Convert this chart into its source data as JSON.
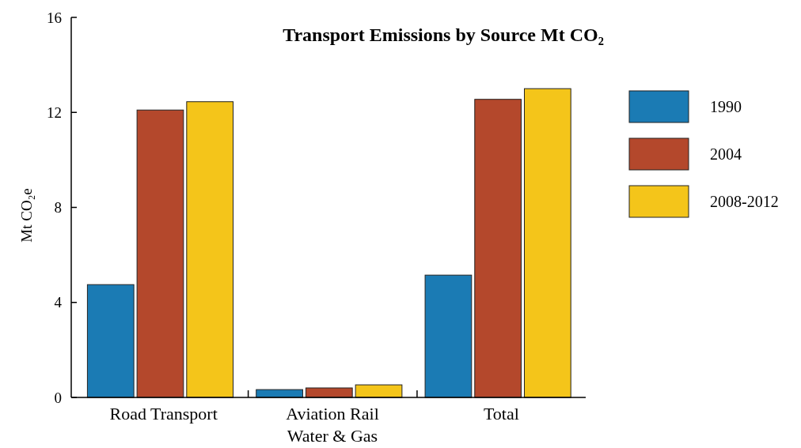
{
  "chart_data": {
    "type": "bar",
    "title": "Transport Emissions by Source Mt CO₂",
    "ylabel": "Mt CO₂e",
    "categories": [
      "Road Transport",
      "Aviation Rail Water & Gas",
      "Total"
    ],
    "series": [
      {
        "name": "1990",
        "color": "#1b7bb4",
        "values": [
          4.75,
          0.33,
          5.15
        ]
      },
      {
        "name": "2004",
        "color": "#b4482c",
        "values": [
          12.1,
          0.4,
          12.55
        ]
      },
      {
        "name": "2008-2012",
        "color": "#f4c51a",
        "values": [
          12.45,
          0.53,
          13.0
        ]
      }
    ],
    "ylim": [
      0,
      16
    ],
    "yticks": [
      0,
      4,
      8,
      12,
      16
    ],
    "grid": false,
    "legend": "right"
  }
}
